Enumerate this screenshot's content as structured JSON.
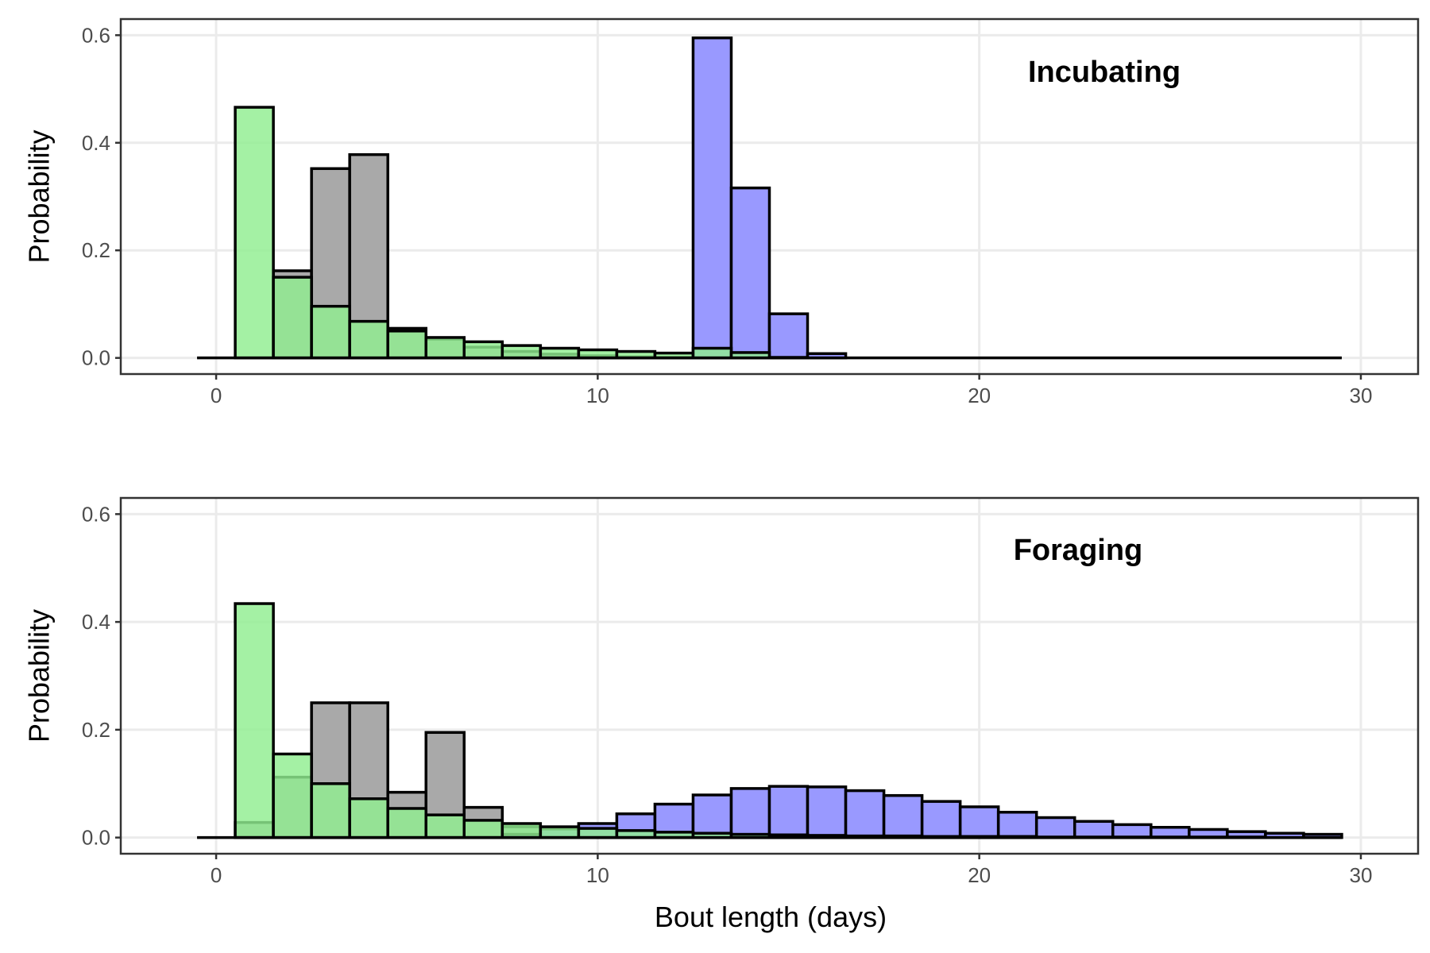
{
  "figure": {
    "xlabel": "Bout length (days)",
    "colors": {
      "green": "#90EE90",
      "grey": "#A9A9A9",
      "blue": "#9999FF"
    }
  },
  "chart_data": [
    {
      "type": "bar",
      "title": "Incubating",
      "xlabel": "",
      "ylabel": "Probability",
      "xlim": [
        -2.5,
        31.5
      ],
      "ylim": [
        -0.03,
        0.63
      ],
      "xticks": [
        0,
        10,
        20,
        30
      ],
      "yticks": [
        0.0,
        0.2,
        0.4,
        0.6
      ],
      "ytick_labels": [
        "0.0",
        "0.2",
        "0.4",
        "0.6"
      ],
      "x": [
        0,
        1,
        2,
        3,
        4,
        5,
        6,
        7,
        8,
        9,
        10,
        11,
        12,
        13,
        14,
        15,
        16,
        17,
        18,
        19,
        20,
        21,
        22,
        23,
        24,
        25,
        26,
        27,
        28,
        29
      ],
      "series": [
        {
          "color": "#A9A9A9",
          "values": [
            0,
            0,
            0.162,
            0.352,
            0.378,
            0.055,
            0.035,
            0.02,
            0.012,
            0.007,
            0.004,
            0.002,
            0.001,
            0,
            0,
            0,
            0,
            0,
            0,
            0,
            0,
            0,
            0,
            0,
            0,
            0,
            0,
            0,
            0,
            0
          ]
        },
        {
          "color": "#9999FF",
          "values": [
            0,
            0,
            0,
            0,
            0,
            0,
            0,
            0,
            0,
            0,
            0,
            0,
            0,
            0.595,
            0.316,
            0.082,
            0.008,
            0,
            0,
            0,
            0,
            0,
            0,
            0,
            0,
            0,
            0,
            0,
            0,
            0
          ]
        },
        {
          "color": "#90EE90",
          "values": [
            0,
            0.466,
            0.15,
            0.096,
            0.068,
            0.05,
            0.038,
            0.03,
            0.023,
            0.018,
            0.015,
            0.012,
            0.009,
            0.018,
            0.01,
            0.001,
            0,
            0,
            0,
            0,
            0,
            0,
            0,
            0,
            0,
            0,
            0,
            0,
            0,
            0
          ]
        }
      ]
    },
    {
      "type": "bar",
      "title": "Foraging",
      "xlabel": "Bout length (days)",
      "ylabel": "Probability",
      "xlim": [
        -2.5,
        31.5
      ],
      "ylim": [
        -0.03,
        0.63
      ],
      "xticks": [
        0,
        10,
        20,
        30
      ],
      "yticks": [
        0.0,
        0.2,
        0.4,
        0.6
      ],
      "ytick_labels": [
        "0.0",
        "0.2",
        "0.4",
        "0.6"
      ],
      "x": [
        0,
        1,
        2,
        3,
        4,
        5,
        6,
        7,
        8,
        9,
        10,
        11,
        12,
        13,
        14,
        15,
        16,
        17,
        18,
        19,
        20,
        21,
        22,
        23,
        24,
        25,
        26,
        27,
        28,
        29
      ],
      "series": [
        {
          "color": "#A9A9A9",
          "values": [
            0,
            0.028,
            0.112,
            0.25,
            0.25,
            0.084,
            0.195,
            0.056,
            0.02,
            0.004,
            0,
            0,
            0,
            0,
            0,
            0,
            0,
            0,
            0,
            0,
            0,
            0,
            0,
            0,
            0,
            0,
            0,
            0,
            0,
            0
          ]
        },
        {
          "color": "#9999FF",
          "values": [
            0,
            0,
            0,
            0,
            0,
            0,
            0,
            0,
            0.006,
            0.016,
            0.026,
            0.044,
            0.062,
            0.079,
            0.091,
            0.095,
            0.094,
            0.087,
            0.078,
            0.067,
            0.057,
            0.047,
            0.037,
            0.03,
            0.024,
            0.019,
            0.015,
            0.011,
            0.008,
            0.006
          ]
        },
        {
          "color": "#90EE90",
          "values": [
            0,
            0.434,
            0.155,
            0.1,
            0.072,
            0.054,
            0.042,
            0.032,
            0.026,
            0.02,
            0.017,
            0.013,
            0.01,
            0.008,
            0.006,
            0.005,
            0.004,
            0.003,
            0.003,
            0.002,
            0.002,
            0.002,
            0.001,
            0.001,
            0.001,
            0.001,
            0.001,
            0.001,
            0,
            0
          ]
        }
      ]
    }
  ]
}
